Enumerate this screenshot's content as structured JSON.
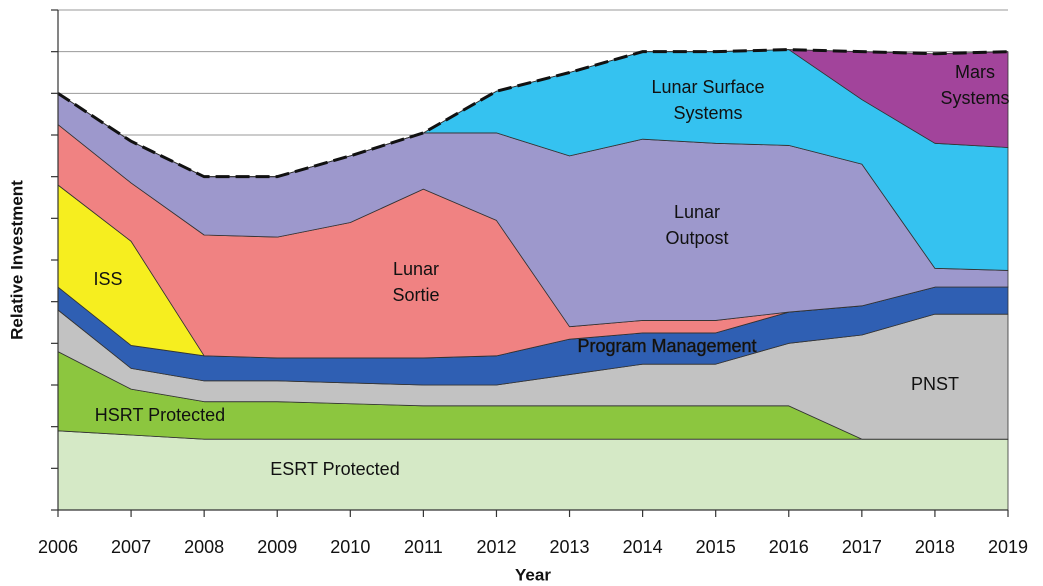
{
  "chart_data": {
    "type": "stacked_area",
    "x_label": "Year",
    "y_label": "Relative Investment",
    "x": [
      2006,
      2007,
      2008,
      2009,
      2010,
      2011,
      2012,
      2013,
      2014,
      2015,
      2016,
      2017,
      2018,
      2019
    ],
    "xlim": [
      2006,
      2019
    ],
    "xticks": [
      2006,
      2007,
      2008,
      2009,
      2010,
      2011,
      2012,
      2013,
      2014,
      2015,
      2016,
      2017,
      2018,
      2019
    ],
    "ylim": [
      0,
      12
    ],
    "yticks": [
      0,
      1,
      2,
      3,
      4,
      5,
      6,
      7,
      8,
      9,
      10,
      11,
      12
    ],
    "grid": true,
    "series": [
      {
        "name": "ESRT Protected",
        "color": "#d5e9c6",
        "values": [
          1.9,
          1.8,
          1.7,
          1.7,
          1.7,
          1.7,
          1.7,
          1.7,
          1.7,
          1.7,
          1.7,
          1.7,
          1.7,
          1.7
        ]
      },
      {
        "name": "HSRT Protected",
        "color": "#8cc63f",
        "values": [
          1.9,
          1.1,
          0.9,
          0.9,
          0.85,
          0.8,
          0.8,
          0.8,
          0.8,
          0.8,
          0.8,
          0,
          0,
          0
        ]
      },
      {
        "name": "PNST",
        "color": "#c2c2c2",
        "values": [
          1.0,
          0.5,
          0.5,
          0.5,
          0.5,
          0.5,
          0.5,
          0.75,
          1.0,
          1.0,
          1.5,
          2.5,
          3.0,
          3.0
        ]
      },
      {
        "name": "Program Management",
        "color": "#2f5fb3",
        "values": [
          0.55,
          0.55,
          0.6,
          0.55,
          0.6,
          0.65,
          0.7,
          0.85,
          0.75,
          0.75,
          0.75,
          0.7,
          0.65,
          0.65
        ]
      },
      {
        "name": "ISS",
        "color": "#f6ee1f",
        "values": [
          2.45,
          2.5,
          0,
          0,
          0,
          0,
          0,
          0,
          0,
          0,
          0,
          0,
          0,
          0
        ]
      },
      {
        "name": "Lunar Sortie",
        "color": "#f08282",
        "values": [
          1.45,
          1.4,
          2.9,
          2.9,
          3.25,
          4.05,
          3.25,
          0.3,
          0.3,
          0.3,
          0,
          0,
          0,
          0
        ]
      },
      {
        "name": "Lunar Outpost",
        "color": "#9d98cc",
        "values": [
          0.75,
          1.0,
          1.4,
          1.45,
          1.6,
          1.35,
          2.1,
          4.1,
          4.35,
          4.25,
          4.0,
          3.4,
          0.45,
          0.4
        ]
      },
      {
        "name": "Lunar Surface Systems",
        "color": "#35c2f0",
        "values": [
          0,
          0,
          0,
          0,
          0,
          0,
          1.0,
          2.0,
          2.1,
          2.2,
          2.3,
          1.55,
          3.0,
          2.95
        ]
      },
      {
        "name": "Mars Systems",
        "color": "#a2449b",
        "values": [
          0,
          0,
          0,
          0,
          0,
          0,
          0,
          0,
          0,
          0,
          0,
          1.15,
          2.15,
          2.3
        ]
      }
    ]
  }
}
